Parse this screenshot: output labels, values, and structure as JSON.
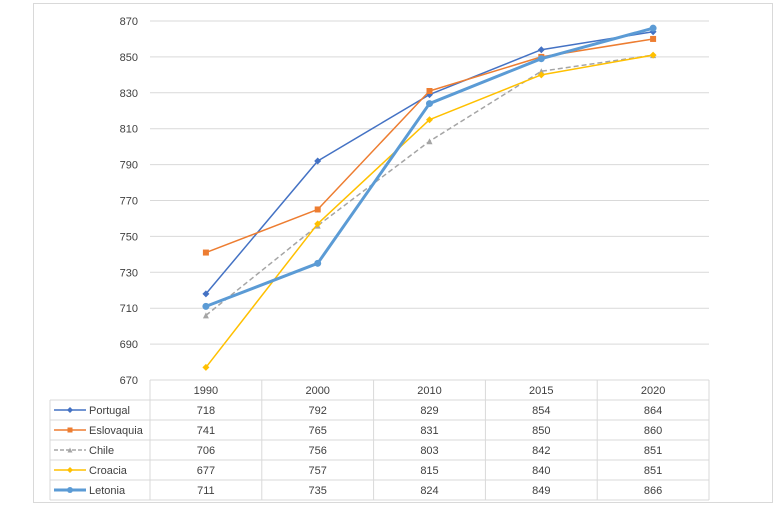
{
  "chart_data": {
    "type": "line",
    "title": "",
    "xlabel": "",
    "ylabel": "",
    "categories": [
      "1990",
      "2000",
      "2010",
      "2015",
      "2020"
    ],
    "y_ticks": [
      "670",
      "690",
      "710",
      "730",
      "750",
      "770",
      "790",
      "810",
      "830",
      "850",
      "870"
    ],
    "ylim": [
      670,
      870
    ],
    "grid": "horizontal",
    "legend": "data-table",
    "series": [
      {
        "name": "Portugal",
        "values": [
          718,
          792,
          829,
          854,
          864
        ],
        "color": "#4472c4",
        "marker": "diamond",
        "dash": false,
        "width": 1.5
      },
      {
        "name": "Eslovaquia",
        "values": [
          741,
          765,
          831,
          850,
          860
        ],
        "color": "#ed7d31",
        "marker": "square",
        "dash": false,
        "width": 1.5
      },
      {
        "name": "Chile",
        "values": [
          706,
          756,
          803,
          842,
          851
        ],
        "color": "#a5a5a5",
        "marker": "triangle",
        "dash": true,
        "width": 1.5
      },
      {
        "name": "Croacia",
        "values": [
          677,
          757,
          815,
          840,
          851
        ],
        "color": "#ffc000",
        "marker": "diamond",
        "dash": false,
        "width": 1.5
      },
      {
        "name": "Letonia",
        "values": [
          711,
          735,
          824,
          849,
          866
        ],
        "color": "#5b9bd5",
        "marker": "circle",
        "dash": false,
        "width": 3
      }
    ]
  }
}
